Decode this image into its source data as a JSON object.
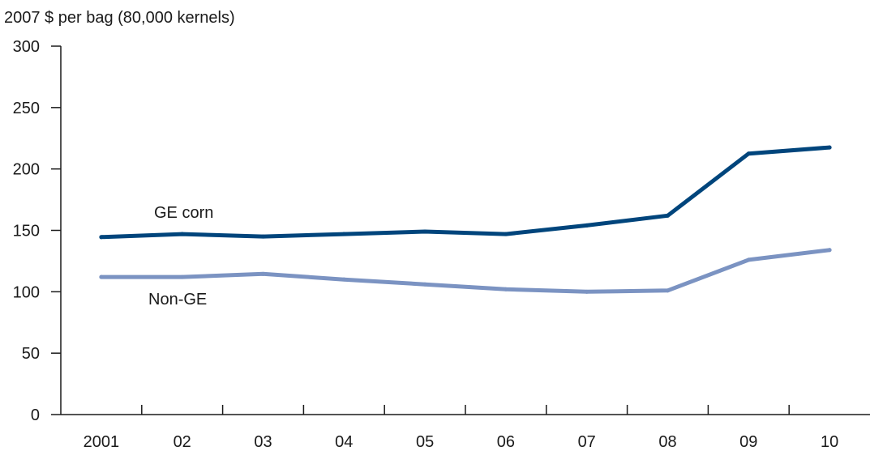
{
  "chart_data": {
    "type": "line",
    "ylabel": "2007 $ per bag (80,000 kernels)",
    "categories": [
      "2001",
      "02",
      "03",
      "04",
      "05",
      "06",
      "07",
      "08",
      "09",
      "10"
    ],
    "ylim": [
      0,
      300
    ],
    "yticks": [
      "0",
      "50",
      "100",
      "150",
      "200",
      "250",
      "300"
    ],
    "grid": false,
    "legend": "inline labels",
    "series": [
      {
        "name": "GE corn",
        "color": "#00457c",
        "values": [
          144.5,
          147,
          145,
          147,
          149,
          147,
          154,
          162,
          212.5,
          217.5
        ]
      },
      {
        "name": "Non-GE",
        "color": "#7b93c2",
        "values": [
          112,
          112,
          114.5,
          110,
          106,
          102,
          100,
          101,
          126,
          134
        ]
      }
    ]
  }
}
